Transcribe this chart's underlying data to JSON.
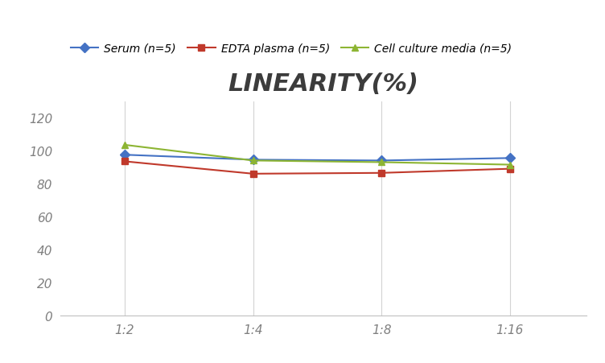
{
  "title": "LINEARITY(%)",
  "x_labels": [
    "1:2",
    "1:4",
    "1:8",
    "1:16"
  ],
  "x_positions": [
    0,
    1,
    2,
    3
  ],
  "series": [
    {
      "label": "Serum (n=5)",
      "values": [
        97.5,
        94.5,
        94.0,
        95.5
      ],
      "color": "#4472C4",
      "marker": "D",
      "linewidth": 1.5
    },
    {
      "label": "EDTA plasma (n=5)",
      "values": [
        93.5,
        86.0,
        86.5,
        89.0
      ],
      "color": "#C0392B",
      "marker": "s",
      "linewidth": 1.5
    },
    {
      "label": "Cell culture media (n=5)",
      "values": [
        103.5,
        94.0,
        93.0,
        91.5
      ],
      "color": "#8DB533",
      "marker": "^",
      "linewidth": 1.5
    }
  ],
  "ylim": [
    0,
    130
  ],
  "yticks": [
    0,
    20,
    40,
    60,
    80,
    100,
    120
  ],
  "grid_color": "#D3D3D3",
  "background_color": "#FFFFFF",
  "title_fontsize": 22,
  "legend_fontsize": 10,
  "tick_fontsize": 11,
  "tick_color": "#808080"
}
